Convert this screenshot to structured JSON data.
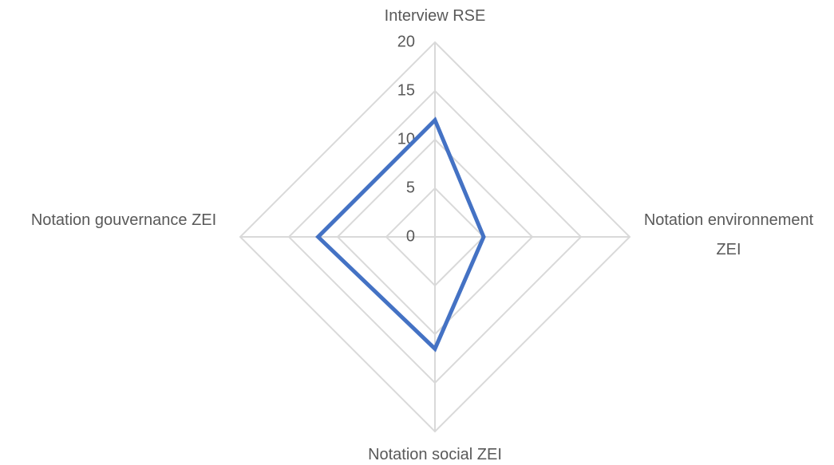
{
  "chart_data": {
    "type": "radar",
    "categories": [
      "Interview RSE",
      "Notation environnement ZEI",
      "Notation social ZEI",
      "Notation gouvernance ZEI"
    ],
    "series": [
      {
        "color": "#4472c4",
        "values": [
          12,
          5,
          11.5,
          12
        ]
      }
    ],
    "ylim": [
      0,
      20
    ],
    "yticks": [
      0,
      5,
      10,
      15,
      20
    ],
    "grid": true
  }
}
